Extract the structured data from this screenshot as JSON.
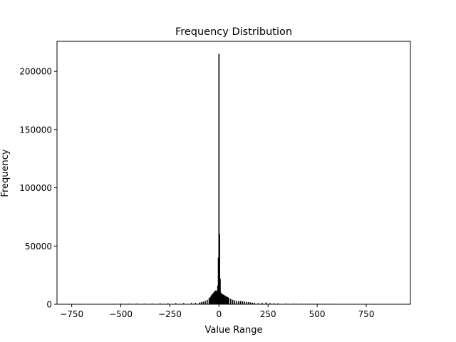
{
  "chart_data": {
    "type": "bar",
    "title": "Frequency Distribution",
    "xlabel": "Value Range",
    "ylabel": "Frequency",
    "xlim": [
      -825,
      975
    ],
    "ylim": [
      0,
      225800
    ],
    "xticks": [
      -750,
      -500,
      -250,
      0,
      250,
      500,
      750
    ],
    "xtick_labels": [
      "−750",
      "−500",
      "−250",
      "0",
      "250",
      "500",
      "750"
    ],
    "yticks": [
      0,
      50000,
      100000,
      150000,
      200000
    ],
    "ytick_labels": [
      "0",
      "50000",
      "100000",
      "150000",
      "200000"
    ],
    "grid": false,
    "bar_color": "#000000",
    "bins": [
      {
        "x": -740,
        "y": 200
      },
      {
        "x": -700,
        "y": 250
      },
      {
        "x": -660,
        "y": 300
      },
      {
        "x": -620,
        "y": 300
      },
      {
        "x": -580,
        "y": 350
      },
      {
        "x": -540,
        "y": 400
      },
      {
        "x": -500,
        "y": 450
      },
      {
        "x": -460,
        "y": 450
      },
      {
        "x": -420,
        "y": 500
      },
      {
        "x": -380,
        "y": 550
      },
      {
        "x": -340,
        "y": 600
      },
      {
        "x": -300,
        "y": 700
      },
      {
        "x": -260,
        "y": 800
      },
      {
        "x": -220,
        "y": 900
      },
      {
        "x": -180,
        "y": 1000
      },
      {
        "x": -140,
        "y": 1100
      },
      {
        "x": -120,
        "y": 1200
      },
      {
        "x": -100,
        "y": 1500
      },
      {
        "x": -90,
        "y": 1800
      },
      {
        "x": -80,
        "y": 2200
      },
      {
        "x": -70,
        "y": 2800
      },
      {
        "x": -60,
        "y": 3800
      },
      {
        "x": -50,
        "y": 5200
      },
      {
        "x": -45,
        "y": 6000
      },
      {
        "x": -40,
        "y": 7500
      },
      {
        "x": -35,
        "y": 8500
      },
      {
        "x": -30,
        "y": 9500
      },
      {
        "x": -25,
        "y": 10500
      },
      {
        "x": -20,
        "y": 11500
      },
      {
        "x": -15,
        "y": 12000
      },
      {
        "x": -10,
        "y": 11000
      },
      {
        "x": -6,
        "y": 16000
      },
      {
        "x": -3,
        "y": 40000
      },
      {
        "x": 0,
        "y": 215000
      },
      {
        "x": 3,
        "y": 60000
      },
      {
        "x": 6,
        "y": 22000
      },
      {
        "x": 10,
        "y": 10000
      },
      {
        "x": 15,
        "y": 9000
      },
      {
        "x": 20,
        "y": 8500
      },
      {
        "x": 25,
        "y": 8000
      },
      {
        "x": 30,
        "y": 7500
      },
      {
        "x": 35,
        "y": 7000
      },
      {
        "x": 40,
        "y": 6500
      },
      {
        "x": 45,
        "y": 6000
      },
      {
        "x": 50,
        "y": 5500
      },
      {
        "x": 60,
        "y": 4500
      },
      {
        "x": 70,
        "y": 3800
      },
      {
        "x": 80,
        "y": 3200
      },
      {
        "x": 90,
        "y": 2800
      },
      {
        "x": 100,
        "y": 2600
      },
      {
        "x": 110,
        "y": 2800
      },
      {
        "x": 120,
        "y": 2500
      },
      {
        "x": 130,
        "y": 2300
      },
      {
        "x": 140,
        "y": 2000
      },
      {
        "x": 150,
        "y": 1800
      },
      {
        "x": 160,
        "y": 1600
      },
      {
        "x": 170,
        "y": 1400
      },
      {
        "x": 180,
        "y": 1200
      },
      {
        "x": 200,
        "y": 1000
      },
      {
        "x": 220,
        "y": 1100
      },
      {
        "x": 240,
        "y": 1500
      },
      {
        "x": 260,
        "y": 1000
      },
      {
        "x": 280,
        "y": 800
      },
      {
        "x": 300,
        "y": 700
      },
      {
        "x": 340,
        "y": 600
      },
      {
        "x": 380,
        "y": 550
      },
      {
        "x": 420,
        "y": 500
      },
      {
        "x": 460,
        "y": 450
      },
      {
        "x": 500,
        "y": 450
      },
      {
        "x": 540,
        "y": 400
      },
      {
        "x": 580,
        "y": 400
      },
      {
        "x": 620,
        "y": 350
      },
      {
        "x": 660,
        "y": 350
      },
      {
        "x": 700,
        "y": 300
      },
      {
        "x": 740,
        "y": 300
      },
      {
        "x": 780,
        "y": 250
      },
      {
        "x": 820,
        "y": 250
      },
      {
        "x": 860,
        "y": 200
      },
      {
        "x": 900,
        "y": 200
      }
    ]
  }
}
